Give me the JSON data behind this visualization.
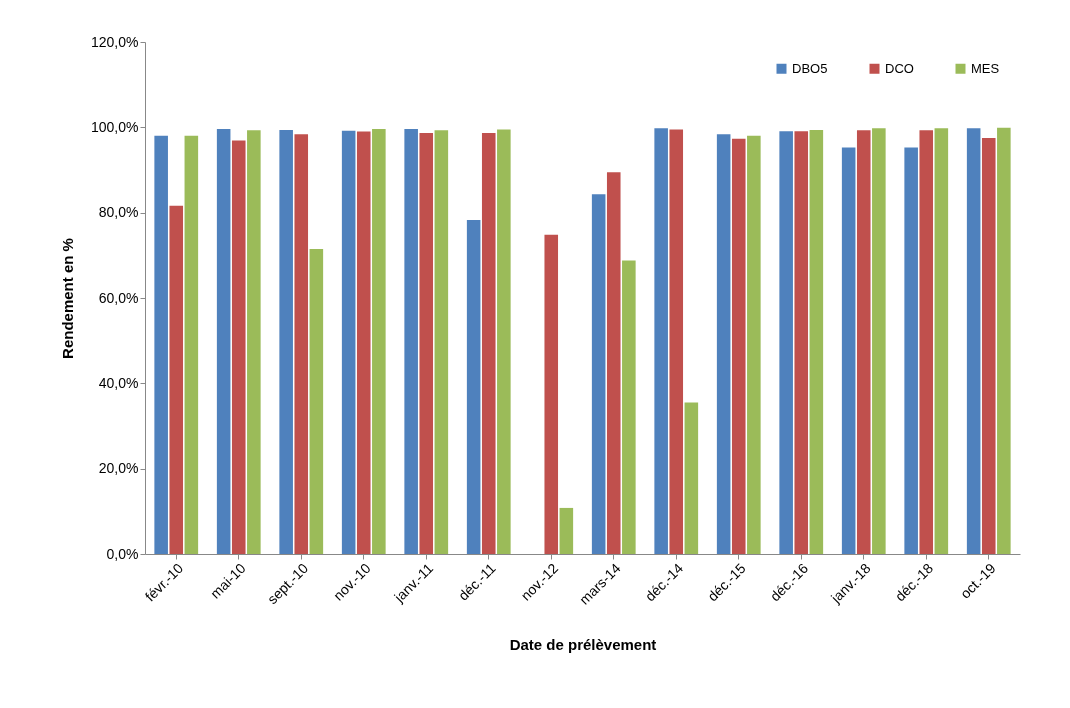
{
  "chart_data": {
    "type": "bar",
    "xlabel": "Date de prélèvement",
    "ylabel": "Rendement en  %",
    "categories": [
      "févr.-10",
      "mai-10",
      "sept.-10",
      "nov.-10",
      "janv.-11",
      "déc.-11",
      "nov.-12",
      "mars-14",
      "déc.-14",
      "déc.-15",
      "déc.-16",
      "janv.-18",
      "déc.-18",
      "oct.-19"
    ],
    "series": [
      {
        "name": "DBO5",
        "color": "#4f81bd",
        "values": [
          98.0,
          99.6,
          99.4,
          99.2,
          99.6,
          78.3,
          null,
          84.3,
          99.8,
          98.4,
          99.1,
          95.3,
          95.3,
          99.8
        ]
      },
      {
        "name": "DCO",
        "color": "#c0504d",
        "values": [
          81.6,
          96.9,
          98.4,
          99.0,
          98.7,
          98.7,
          74.8,
          89.5,
          99.5,
          97.3,
          99.1,
          99.3,
          99.3,
          97.5
        ]
      },
      {
        "name": "MES",
        "color": "#9bbb59",
        "values": [
          98.0,
          99.3,
          71.5,
          99.6,
          99.3,
          99.5,
          10.8,
          68.8,
          35.5,
          98.0,
          99.4,
          99.8,
          99.8,
          99.9
        ]
      }
    ],
    "ylim": [
      0,
      120
    ],
    "yticks": [
      {
        "value": 0,
        "label": "0,0%"
      },
      {
        "value": 20,
        "label": "20,0%"
      },
      {
        "value": 40,
        "label": "40,0%"
      },
      {
        "value": 60,
        "label": "60,0%"
      },
      {
        "value": 80,
        "label": "80,0%"
      },
      {
        "value": 100,
        "label": "100,0%"
      },
      {
        "value": 120,
        "label": "120,0%"
      }
    ],
    "grid": false,
    "legend": "top right"
  }
}
